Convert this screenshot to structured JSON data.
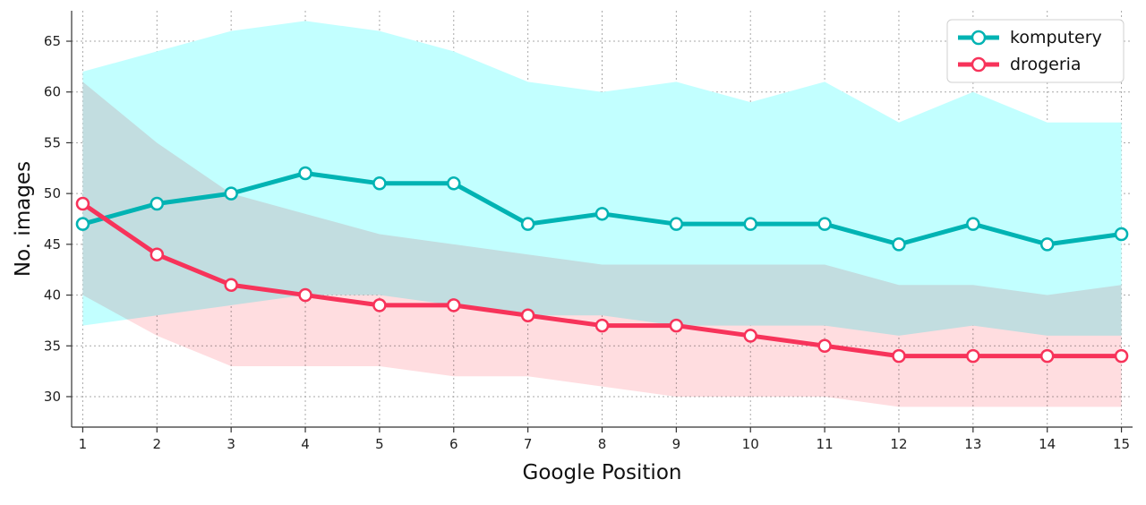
{
  "chart_data": {
    "type": "line",
    "title": "",
    "xlabel": "Google Position",
    "ylabel": "No. images",
    "x": [
      1,
      2,
      3,
      4,
      5,
      6,
      7,
      8,
      9,
      10,
      11,
      12,
      13,
      14,
      15
    ],
    "xlim": [
      0.85,
      15.15
    ],
    "ylim": [
      27,
      68
    ],
    "yticks": [
      30,
      35,
      40,
      45,
      50,
      55,
      60,
      65
    ],
    "grid": true,
    "legend_position": "top-right",
    "series": [
      {
        "name": "komputery",
        "color": "#00b3b3",
        "band_color": "#c2ffff",
        "values": [
          47,
          49,
          50,
          52,
          51,
          51,
          47,
          48,
          47,
          47,
          47,
          45,
          47,
          45,
          46
        ],
        "band_upper": [
          62,
          64,
          66,
          67,
          66,
          64,
          61,
          60,
          61,
          59,
          61,
          57,
          60,
          57,
          57
        ],
        "band_lower": [
          37,
          38,
          39,
          40,
          40,
          39,
          38,
          38,
          37,
          37,
          37,
          36,
          37,
          36,
          36
        ]
      },
      {
        "name": "drogeria",
        "color": "#f7335a",
        "band_color": "#ffdde0",
        "values": [
          49,
          44,
          41,
          40,
          39,
          39,
          38,
          37,
          37,
          36,
          35,
          34,
          34,
          34,
          34
        ],
        "band_upper": [
          61,
          55,
          50,
          48,
          46,
          45,
          44,
          43,
          43,
          43,
          43,
          41,
          41,
          40,
          41
        ],
        "band_lower": [
          40,
          36,
          33,
          33,
          33,
          32,
          32,
          31,
          30,
          30,
          30,
          29,
          29,
          29,
          29
        ]
      }
    ]
  }
}
